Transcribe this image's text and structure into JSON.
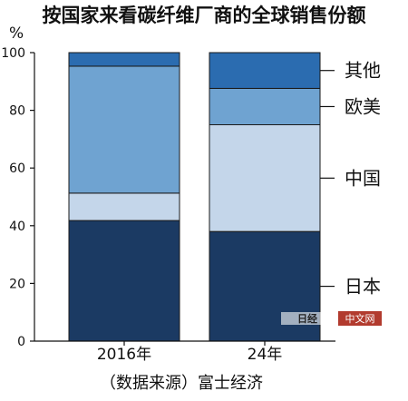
{
  "chart_data": {
    "type": "bar",
    "stacked": true,
    "title": "按国家来看碳纤维厂商的全球销售份额",
    "ylabel": "%",
    "ylim": [
      0,
      100
    ],
    "yticks": [
      "0",
      "20",
      "40",
      "60",
      "80",
      "100"
    ],
    "categories": [
      "2016年",
      "24年"
    ],
    "series": [
      {
        "name": "日本",
        "values": [
          41.8,
          38
        ],
        "color": "#1b3a63"
      },
      {
        "name": "中国",
        "values": [
          9.5,
          37
        ],
        "color": "#c4d6ea"
      },
      {
        "name": "欧美",
        "values": [
          44,
          12.6
        ],
        "color": "#6fa3d1"
      },
      {
        "name": "其他",
        "values": [
          4.7,
          12.4
        ],
        "color": "#2b6cb0"
      }
    ],
    "legend_placement": "right",
    "grid": false
  },
  "source": "（数据来源）富士经济",
  "watermark": {
    "logo_text": "日经",
    "badge": "中文网"
  }
}
